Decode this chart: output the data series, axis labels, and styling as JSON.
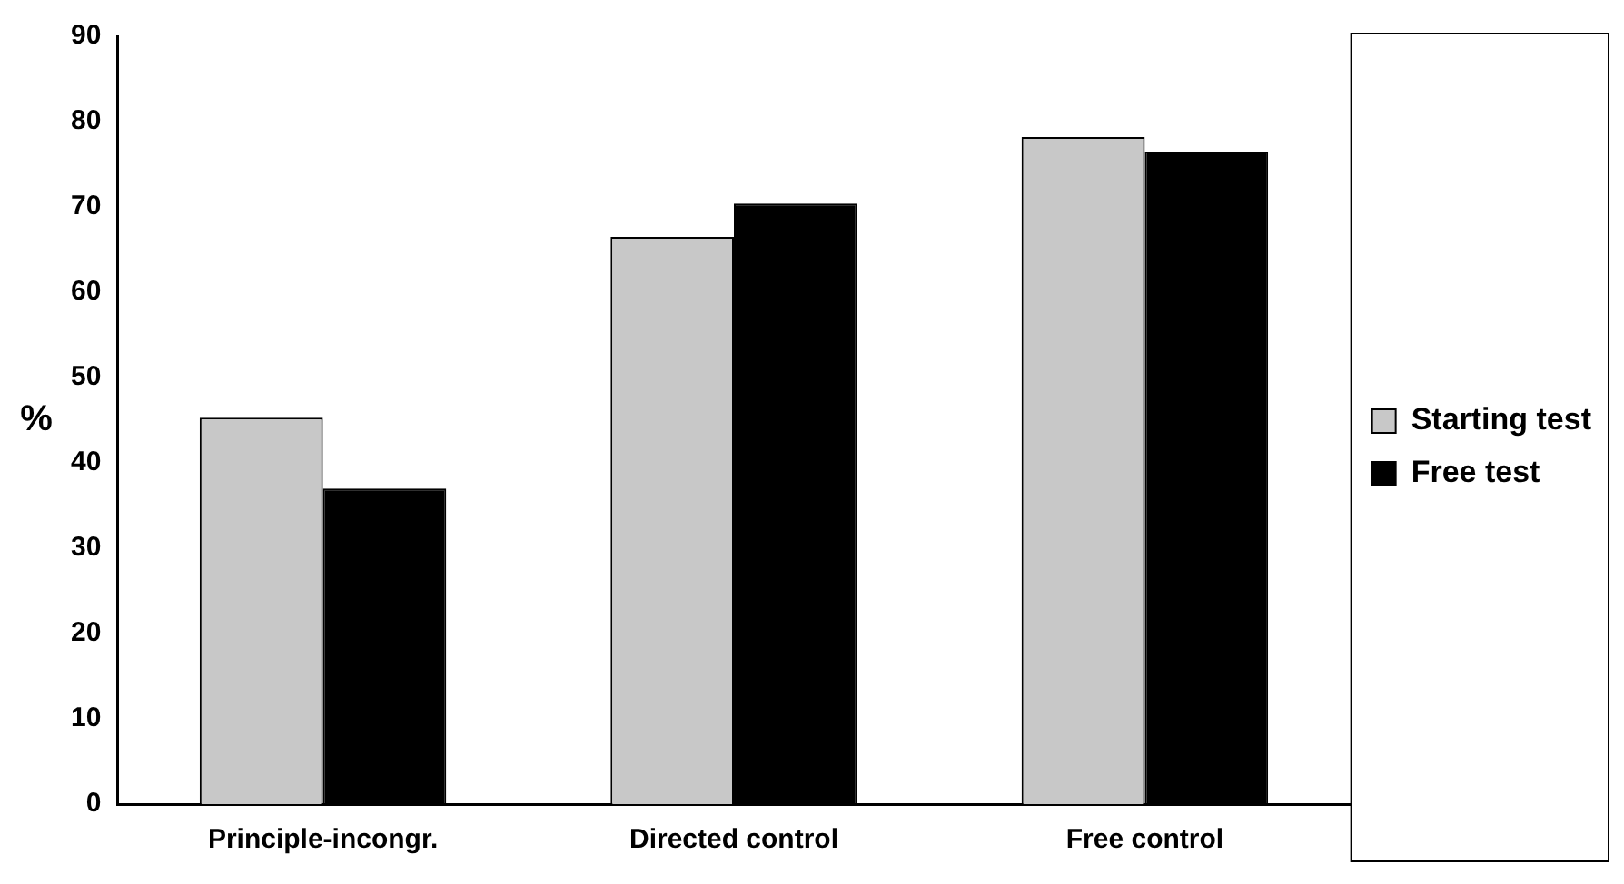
{
  "chart_data": {
    "type": "bar",
    "ylabel": "%",
    "categories": [
      "Principle-incongr.",
      "Directed control",
      "Free control"
    ],
    "series": [
      {
        "name": "Starting test",
        "color": "#c8c8c8",
        "values": [
          45.3,
          66.5,
          78.2
        ]
      },
      {
        "name": "Free test",
        "color": "#000000",
        "values": [
          37,
          70.4,
          76.5
        ]
      }
    ],
    "ylim": [
      0,
      90
    ],
    "yticks": [
      0,
      10,
      20,
      30,
      40,
      50,
      60,
      70,
      80,
      90
    ],
    "grid": false,
    "legend": "right"
  }
}
